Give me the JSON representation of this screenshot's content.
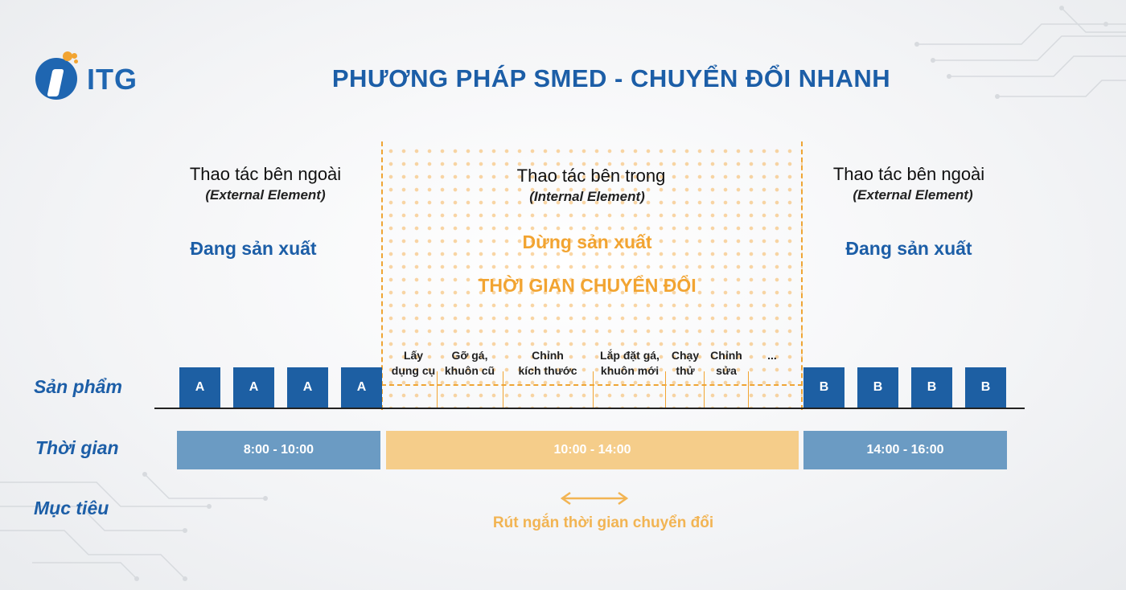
{
  "brand": {
    "name": "ITG"
  },
  "title": "PHƯƠNG PHÁP SMED - CHUYỂN ĐỔI NHANH",
  "columns": {
    "left": {
      "heading": "Thao tác bên ngoài",
      "sub": "(External Element)",
      "state": "Đang sản xuất"
    },
    "middle": {
      "heading": "Thao tác bên trong",
      "sub": "(Internal Element)",
      "state": "Dừng sản xuất",
      "banner": "THỜI GIAN CHUYỂN ĐỔI"
    },
    "right": {
      "heading": "Thao tác bên ngoài",
      "sub": "(External Element)",
      "state": "Đang sản xuất"
    }
  },
  "row_labels": {
    "product": "Sản phẩm",
    "time": "Thời gian",
    "goal": "Mục tiêu"
  },
  "products": {
    "before": [
      "A",
      "A",
      "A",
      "A"
    ],
    "after": [
      "B",
      "B",
      "B",
      "B"
    ]
  },
  "steps": [
    {
      "line1": "Lấy",
      "line2": "dụng cụ"
    },
    {
      "line1": "Gỡ gá,",
      "line2": "khuôn cũ"
    },
    {
      "line1": "Chỉnh",
      "line2": "kích thước"
    },
    {
      "line1": "Lắp đặt gá,",
      "line2": "khuôn mới"
    },
    {
      "line1": "Chạy",
      "line2": "thử"
    },
    {
      "line1": "Chỉnh",
      "line2": "sửa"
    },
    {
      "line1": "",
      "line2": "..."
    }
  ],
  "time_bars": {
    "before": "8:00 - 10:00",
    "changeover": "10:00 - 14:00",
    "after": "14:00 - 16:00"
  },
  "goal": "Rút ngắn thời gian chuyển đổi",
  "colors": {
    "primary_blue": "#1c5ea7",
    "product_box": "#1d5fa3",
    "time_blue": "#6b9bc3",
    "accent_orange": "#f2a431",
    "time_orange": "#f5cd8a"
  }
}
